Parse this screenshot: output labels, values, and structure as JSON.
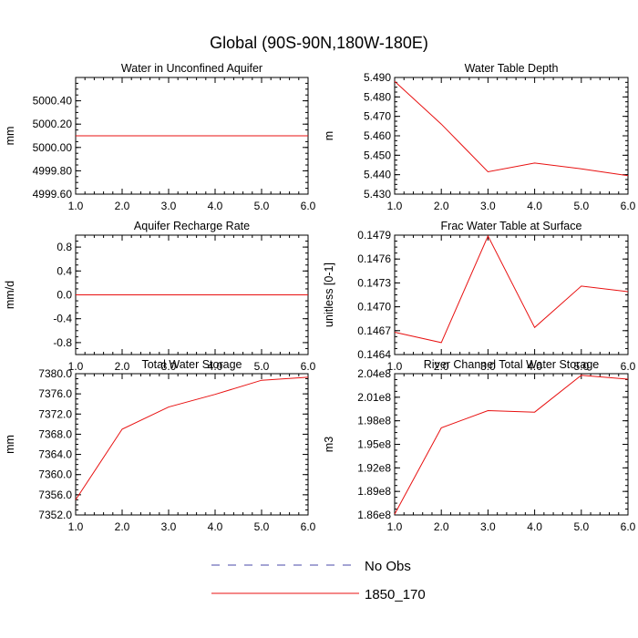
{
  "figure_title": "Global (90S-90N,180W-180E)",
  "colors": {
    "obs": "#4a4aa8",
    "model": "#e81010",
    "axis": "#000000"
  },
  "legend": [
    {
      "label": "No Obs",
      "style": "dashed",
      "color": "#4a4aa8"
    },
    {
      "label": "1850_170",
      "style": "solid",
      "color": "#e81010"
    }
  ],
  "chart_data": [
    {
      "type": "line",
      "title": "Water in Unconfined Aquifer",
      "ylabel": "mm",
      "xlim": [
        1,
        6
      ],
      "ylim": [
        4999.6,
        5000.6
      ],
      "xticks": [
        1,
        2,
        3,
        4,
        5,
        6
      ],
      "xtick_labels": [
        "1.0",
        "2.0",
        "3.0",
        "4.0",
        "5.0",
        "6.0"
      ],
      "yticks": [
        4999.6,
        4999.8,
        5000.0,
        5000.2,
        5000.4
      ],
      "ytick_labels": [
        "4999.60",
        "4999.80",
        "5000.00",
        "5000.20",
        "5000.40"
      ],
      "series": [
        {
          "name": "1850_170",
          "x": [
            1,
            2,
            3,
            4,
            5,
            6
          ],
          "y": [
            5000.1,
            5000.1,
            5000.1,
            5000.1,
            5000.1,
            5000.1
          ]
        }
      ]
    },
    {
      "type": "line",
      "title": "Water Table Depth",
      "ylabel": "m",
      "xlim": [
        1,
        6
      ],
      "ylim": [
        5.43,
        5.49
      ],
      "xticks": [
        1,
        2,
        3,
        4,
        5,
        6
      ],
      "xtick_labels": [
        "1.0",
        "2.0",
        "3.0",
        "4.0",
        "5.0",
        "6.0"
      ],
      "yticks": [
        5.43,
        5.44,
        5.45,
        5.46,
        5.47,
        5.48,
        5.49
      ],
      "ytick_labels": [
        "5.430",
        "5.440",
        "5.450",
        "5.460",
        "5.470",
        "5.480",
        "5.490"
      ],
      "series": [
        {
          "name": "1850_170",
          "x": [
            1,
            2,
            3,
            4,
            5,
            6
          ],
          "y": [
            5.488,
            5.466,
            5.4415,
            5.446,
            5.443,
            5.4395
          ]
        }
      ]
    },
    {
      "type": "line",
      "title": "Aquifer Recharge Rate",
      "ylabel": "mm/d",
      "xlim": [
        1,
        6
      ],
      "ylim": [
        -1.0,
        1.0
      ],
      "xticks": [
        1,
        2,
        3,
        4,
        5,
        6
      ],
      "xtick_labels": [
        "1.0",
        "2.0",
        "3.0",
        "4.0",
        "5.0",
        "6.0"
      ],
      "yticks": [
        -0.8,
        -0.4,
        0.0,
        0.4,
        0.8
      ],
      "ytick_labels": [
        "-0.8",
        "-0.4",
        "0.0",
        "0.4",
        "0.8"
      ],
      "series": [
        {
          "name": "1850_170",
          "x": [
            1,
            2,
            3,
            4,
            5,
            6
          ],
          "y": [
            0,
            0,
            0,
            0,
            0,
            0
          ]
        }
      ]
    },
    {
      "type": "line",
      "title": "Frac Water Table at Surface",
      "ylabel": "unitless [0-1]",
      "xlim": [
        1,
        6
      ],
      "ylim": [
        0.1464,
        0.1479
      ],
      "xticks": [
        1,
        2,
        3,
        4,
        5,
        6
      ],
      "xtick_labels": [
        "1.0",
        "2.0",
        "3.0",
        "4.0",
        "5.0",
        "6.0"
      ],
      "yticks": [
        0.1464,
        0.1467,
        0.147,
        0.1473,
        0.1476,
        0.1479
      ],
      "ytick_labels": [
        "0.1464",
        "0.1467",
        "0.1470",
        "0.1473",
        "0.1476",
        "0.1479"
      ],
      "series": [
        {
          "name": "1850_170",
          "x": [
            1,
            2,
            3,
            4,
            5,
            6
          ],
          "y": [
            0.14668,
            0.14655,
            0.14789,
            0.14674,
            0.14726,
            0.14719
          ]
        }
      ]
    },
    {
      "type": "line",
      "title": "Total Water Storage",
      "ylabel": "mm",
      "xlim": [
        1,
        6
      ],
      "ylim": [
        7352,
        7380
      ],
      "xticks": [
        1,
        2,
        3,
        4,
        5,
        6
      ],
      "xtick_labels": [
        "1.0",
        "2.0",
        "3.0",
        "4.0",
        "5.0",
        "6.0"
      ],
      "yticks": [
        7352,
        7356,
        7360,
        7364,
        7368,
        7372,
        7376,
        7380
      ],
      "ytick_labels": [
        "7352.0",
        "7356.0",
        "7360.0",
        "7364.0",
        "7368.0",
        "7372.0",
        "7376.0",
        "7380.0"
      ],
      "series": [
        {
          "name": "1850_170",
          "x": [
            1,
            2,
            3,
            4,
            5,
            6
          ],
          "y": [
            7355.0,
            7369.0,
            7373.4,
            7375.9,
            7378.7,
            7379.3
          ]
        }
      ]
    },
    {
      "type": "line",
      "title": "River Channel Total Water Storage",
      "ylabel": "m3",
      "xlim": [
        1,
        6
      ],
      "ylim": [
        186000000,
        204000000
      ],
      "xticks": [
        1,
        2,
        3,
        4,
        5,
        6
      ],
      "xtick_labels": [
        "1.0",
        "2.0",
        "3.0",
        "4.0",
        "5.0",
        "6.0"
      ],
      "yticks": [
        186000000,
        189000000,
        192000000,
        195000000,
        198000000,
        201000000,
        204000000
      ],
      "ytick_labels": [
        "1.86e8",
        "1.89e8",
        "1.92e8",
        "1.95e8",
        "1.98e8",
        "2.01e8",
        "2.04e8"
      ],
      "series": [
        {
          "name": "1850_170",
          "x": [
            1,
            2,
            3,
            4,
            5,
            6
          ],
          "y": [
            186100000,
            197100000,
            199300000,
            199100000,
            203800000,
            203300000
          ]
        }
      ]
    }
  ]
}
